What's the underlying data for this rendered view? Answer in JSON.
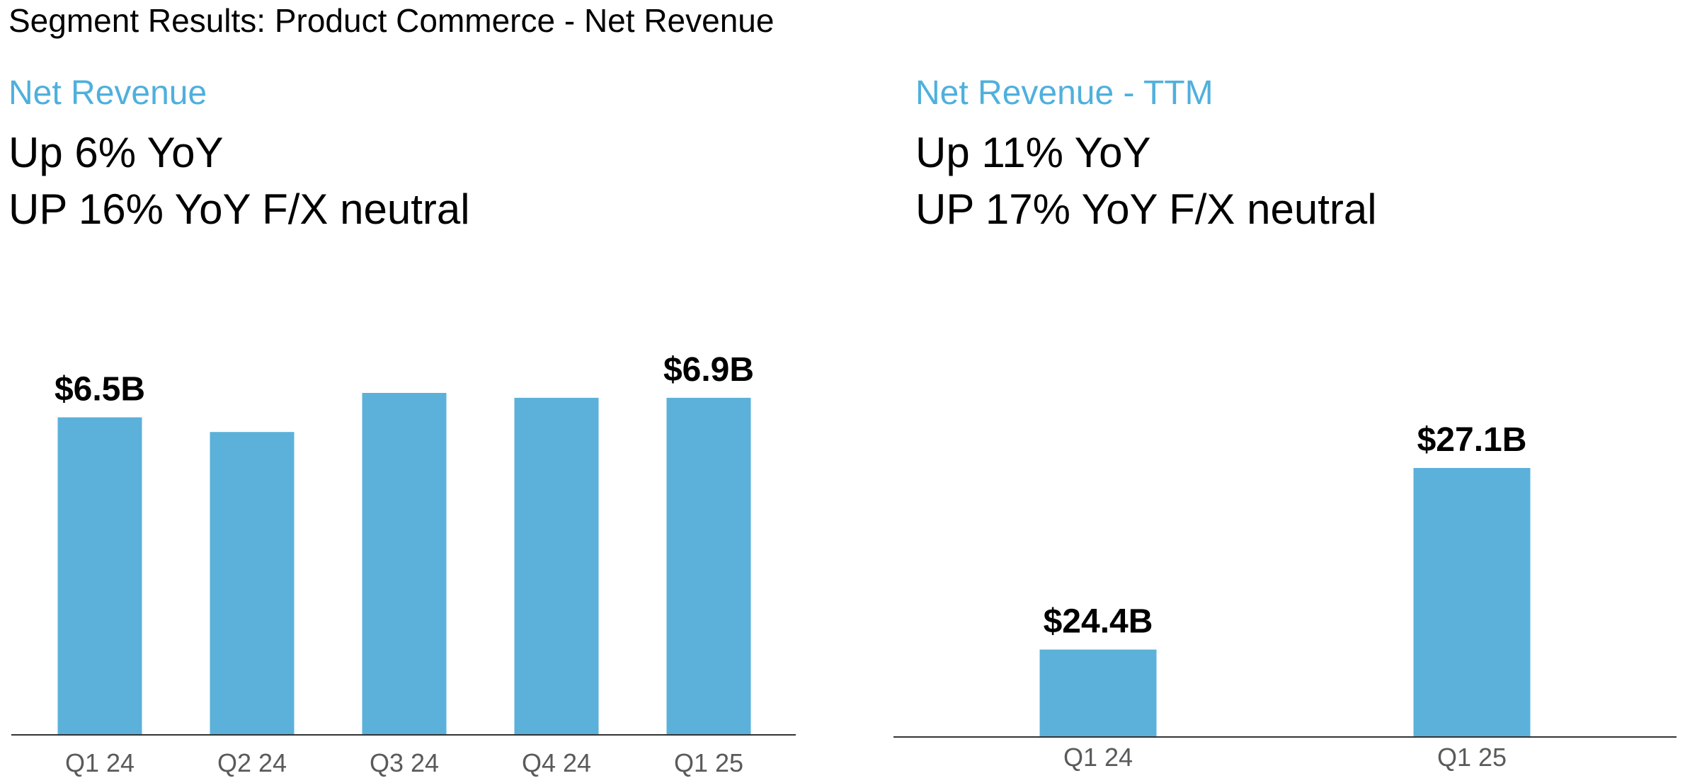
{
  "page": {
    "title": "Segment Results: Product Commerce - Net Revenue"
  },
  "colors": {
    "bar": "#5bb1da",
    "subtitle": "#4fb0dc",
    "axis": "#333333",
    "tick": "#5a5a5a"
  },
  "chart_data": [
    {
      "type": "bar",
      "title": "Net Revenue",
      "metrics": [
        "Up 6% YoY",
        "UP 16% YoY F/X neutral"
      ],
      "categories": [
        "Q1 24",
        "Q2 24",
        "Q3 24",
        "Q4 24",
        "Q1 25"
      ],
      "values": [
        6.5,
        6.2,
        7.0,
        6.9,
        6.9
      ],
      "data_labels": [
        "$6.5B",
        "",
        "",
        "",
        "$6.9B"
      ],
      "ylim": [
        0,
        7.0
      ],
      "grid": false,
      "legend": "none"
    },
    {
      "type": "bar",
      "title": "Net Revenue - TTM",
      "metrics": [
        "Up 11% YoY",
        "UP 17% YoY F/X neutral"
      ],
      "categories": [
        "Q1 24",
        "Q1 25"
      ],
      "values": [
        24.4,
        27.1
      ],
      "data_labels": [
        "$24.4B",
        "$27.1B"
      ],
      "ylim": [
        23.1,
        27.1
      ],
      "grid": false,
      "legend": "none"
    }
  ]
}
